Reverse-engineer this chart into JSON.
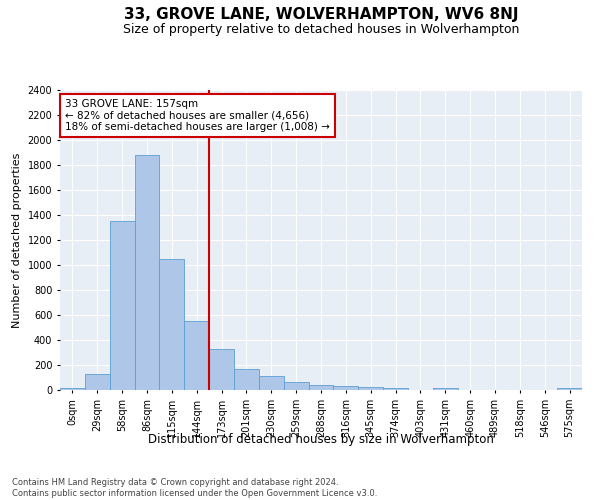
{
  "title": "33, GROVE LANE, WOLVERHAMPTON, WV6 8NJ",
  "subtitle": "Size of property relative to detached houses in Wolverhampton",
  "xlabel": "Distribution of detached houses by size in Wolverhampton",
  "ylabel": "Number of detached properties",
  "categories": [
    "0sqm",
    "29sqm",
    "58sqm",
    "86sqm",
    "115sqm",
    "144sqm",
    "173sqm",
    "201sqm",
    "230sqm",
    "259sqm",
    "288sqm",
    "316sqm",
    "345sqm",
    "374sqm",
    "403sqm",
    "431sqm",
    "460sqm",
    "489sqm",
    "518sqm",
    "546sqm",
    "575sqm"
  ],
  "values": [
    15,
    130,
    1350,
    1880,
    1050,
    550,
    330,
    165,
    110,
    65,
    40,
    30,
    25,
    20,
    0,
    20,
    0,
    0,
    0,
    0,
    15
  ],
  "bar_color": "#aec6e8",
  "bar_edgecolor": "#5a9fd4",
  "vline_x": 5.5,
  "vline_color": "#cc0000",
  "annotation_text": "33 GROVE LANE: 157sqm\n← 82% of detached houses are smaller (4,656)\n18% of semi-detached houses are larger (1,008) →",
  "annotation_box_color": "#ffffff",
  "annotation_box_edgecolor": "#cc0000",
  "ylim": [
    0,
    2400
  ],
  "yticks": [
    0,
    200,
    400,
    600,
    800,
    1000,
    1200,
    1400,
    1600,
    1800,
    2000,
    2200,
    2400
  ],
  "background_color": "#e8eef5",
  "footer": "Contains HM Land Registry data © Crown copyright and database right 2024.\nContains public sector information licensed under the Open Government Licence v3.0.",
  "title_fontsize": 11,
  "subtitle_fontsize": 9,
  "xlabel_fontsize": 8.5,
  "ylabel_fontsize": 8,
  "tick_fontsize": 7,
  "annotation_fontsize": 7.5,
  "footer_fontsize": 6
}
